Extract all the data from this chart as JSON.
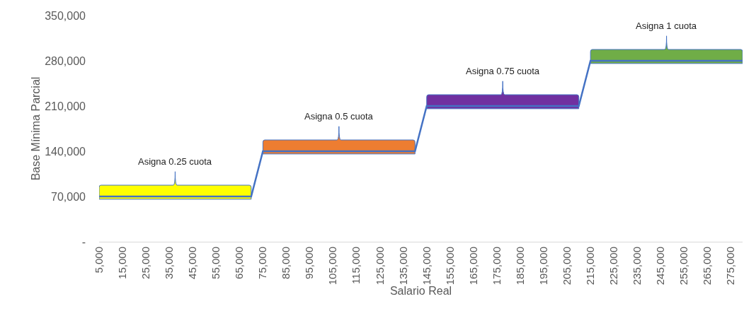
{
  "chart_data": {
    "type": "line",
    "xlabel": "Salario Real",
    "ylabel": "Base Mínima Parcial",
    "x": [
      5000,
      10000,
      15000,
      20000,
      25000,
      30000,
      35000,
      40000,
      45000,
      50000,
      55000,
      60000,
      65000,
      70000,
      75000,
      80000,
      85000,
      90000,
      95000,
      100000,
      105000,
      110000,
      115000,
      120000,
      125000,
      130000,
      135000,
      140000,
      145000,
      150000,
      155000,
      160000,
      165000,
      170000,
      175000,
      180000,
      185000,
      190000,
      195000,
      200000,
      205000,
      210000,
      215000,
      220000,
      225000,
      230000,
      235000,
      240000,
      245000,
      250000,
      255000,
      260000,
      265000,
      270000,
      275000,
      280000
    ],
    "series": [
      {
        "color": "#4472c4",
        "values": [
          70000,
          70000,
          70000,
          70000,
          70000,
          70000,
          70000,
          70000,
          70000,
          70000,
          70000,
          70000,
          70000,
          70000,
          140000,
          140000,
          140000,
          140000,
          140000,
          140000,
          140000,
          140000,
          140000,
          140000,
          140000,
          140000,
          140000,
          140000,
          210000,
          210000,
          210000,
          210000,
          210000,
          210000,
          210000,
          210000,
          210000,
          210000,
          210000,
          210000,
          210000,
          210000,
          280000,
          280000,
          280000,
          280000,
          280000,
          280000,
          280000,
          280000,
          280000,
          280000,
          280000,
          280000,
          280000,
          280000
        ]
      }
    ],
    "xlim": [
      5000,
      280000
    ],
    "xticks": [
      {
        "value": 5000,
        "label": "5,000"
      },
      {
        "value": 15000,
        "label": "15,000"
      },
      {
        "value": 25000,
        "label": "25,000"
      },
      {
        "value": 35000,
        "label": "35,000"
      },
      {
        "value": 45000,
        "label": "45,000"
      },
      {
        "value": 55000,
        "label": "55,000"
      },
      {
        "value": 65000,
        "label": "65,000"
      },
      {
        "value": 75000,
        "label": "75,000"
      },
      {
        "value": 85000,
        "label": "85,000"
      },
      {
        "value": 95000,
        "label": "95,000"
      },
      {
        "value": 105000,
        "label": "105,000"
      },
      {
        "value": 115000,
        "label": "115,000"
      },
      {
        "value": 125000,
        "label": "125,000"
      },
      {
        "value": 135000,
        "label": "135,000"
      },
      {
        "value": 145000,
        "label": "145,000"
      },
      {
        "value": 155000,
        "label": "155,000"
      },
      {
        "value": 165000,
        "label": "165,000"
      },
      {
        "value": 175000,
        "label": "175,000"
      },
      {
        "value": 185000,
        "label": "185,000"
      },
      {
        "value": 195000,
        "label": "195,000"
      },
      {
        "value": 205000,
        "label": "205,000"
      },
      {
        "value": 215000,
        "label": "215,000"
      },
      {
        "value": 225000,
        "label": "225,000"
      },
      {
        "value": 235000,
        "label": "235,000"
      },
      {
        "value": 245000,
        "label": "245,000"
      },
      {
        "value": 255000,
        "label": "255,000"
      },
      {
        "value": 265000,
        "label": "265,000"
      },
      {
        "value": 275000,
        "label": "275,000"
      }
    ],
    "ylim": [
      0,
      350000
    ],
    "yticks": [
      {
        "value": 0,
        "label": "-"
      },
      {
        "value": 70000,
        "label": "70,000"
      },
      {
        "value": 140000,
        "label": "140,000"
      },
      {
        "value": 210000,
        "label": "210,000"
      },
      {
        "value": 280000,
        "label": "280,000"
      },
      {
        "value": 350000,
        "label": "350,000"
      }
    ],
    "annotations": [
      "Asigna 0.25 cuota",
      "Asigna 0.5 cuota",
      "Asigna 0.75 cuota",
      "Asigna 1 cuota"
    ],
    "grid": false,
    "marker": "none",
    "line_style": "solid"
  }
}
